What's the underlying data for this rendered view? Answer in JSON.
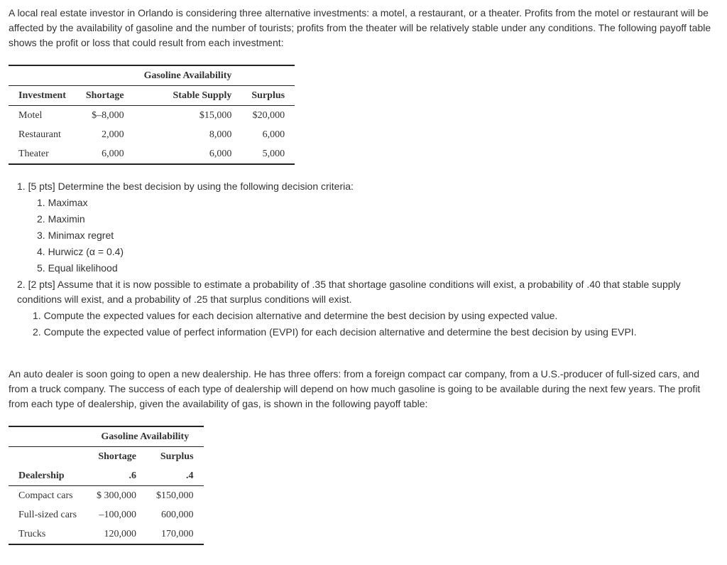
{
  "problem1": {
    "intro": "A local real estate investor in Orlando is considering three alternative investments: a motel, a restaurant, or a theater. Profits from the motel or restaurant will be affected by the availability of gasoline and the number of tourists; profits from the theater will be relatively stable under any conditions. The following payoff table shows the profit or loss that could result from each investment:",
    "table": {
      "groupHeader": "Gasoline Availability",
      "rowHeader": "Investment",
      "colHeaders": [
        "Shortage",
        "Stable Supply",
        "Surplus"
      ],
      "rows": [
        {
          "label": "Motel",
          "values": [
            "$–8,000",
            "$15,000",
            "$20,000"
          ]
        },
        {
          "label": "Restaurant",
          "values": [
            "2,000",
            "8,000",
            "6,000"
          ]
        },
        {
          "label": "Theater",
          "values": [
            "6,000",
            "6,000",
            "5,000"
          ]
        }
      ]
    },
    "q1_lead": "1. [5 pts] Determine the best decision by using the following decision criteria:",
    "criteria": [
      "1. Maximax",
      "2. Maximin",
      "3. Minimax regret",
      "4. Hurwicz (α = 0.4)",
      "5. Equal likelihood"
    ],
    "q2_lead": "2. [2 pts] Assume that it is now possible to estimate a probability of .35 that shortage gasoline conditions will exist, a probability of .40 that stable supply conditions will exist, and a probability of .25 that surplus conditions will exist.",
    "q2_subs": [
      "1. Compute the expected values for each decision alternative and determine the best decision by using expected value.",
      "2. Compute the expected value of perfect information (EVPI) for each decision alternative and determine the best decision by using EVPI."
    ]
  },
  "problem2": {
    "intro": "An auto dealer is soon going to open a new dealership. He has three offers: from a foreign compact car company, from a U.S.-producer of full-sized cars, and from a truck company. The success of each type of dealership will depend on how much gasoline is going to be available during the next few years. The profit from each type of dealership, given the availability of gas, is shown in the following payoff table:",
    "table": {
      "groupHeader": "Gasoline Availability",
      "rowHeader": "Dealership",
      "colHeaders": [
        "Shortage",
        "Surplus"
      ],
      "colProbs": [
        ".6",
        ".4"
      ],
      "rows": [
        {
          "label": "Compact cars",
          "values": [
            "$ 300,000",
            "$150,000"
          ]
        },
        {
          "label": "Full-sized cars",
          "values": [
            "–100,000",
            "600,000"
          ]
        },
        {
          "label": "Trucks",
          "values": [
            "120,000",
            "170,000"
          ]
        }
      ]
    }
  }
}
